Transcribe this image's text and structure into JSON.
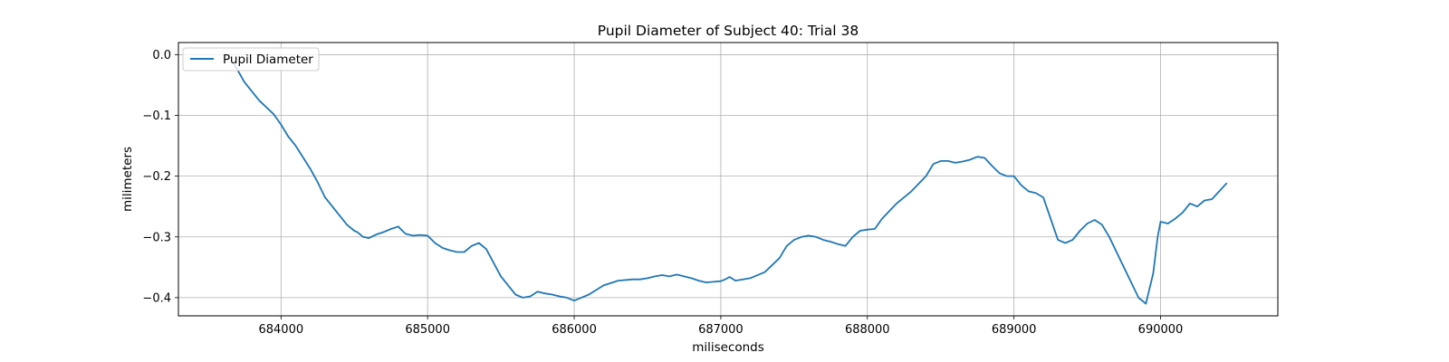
{
  "chart_data": {
    "type": "line",
    "title": "Pupil Diameter of Subject 40: Trial 38",
    "xlabel": "miliseconds",
    "ylabel": "milimeters",
    "xlim": [
      683300,
      690800
    ],
    "ylim": [
      -0.43,
      0.02
    ],
    "xticks": [
      684000,
      685000,
      686000,
      687000,
      688000,
      689000,
      690000
    ],
    "xtick_labels": [
      "684000",
      "685000",
      "686000",
      "687000",
      "688000",
      "689000",
      "690000"
    ],
    "yticks": [
      0.0,
      -0.1,
      -0.2,
      -0.3,
      -0.4
    ],
    "ytick_labels": [
      "0.0",
      "−0.1",
      "−0.2",
      "−0.3",
      "−0.4"
    ],
    "grid": true,
    "legend": {
      "position": "upper-left"
    },
    "series": [
      {
        "name": "Pupil Diameter",
        "color": "#1f77b4",
        "x": [
          683680,
          683750,
          683850,
          683950,
          684000,
          684050,
          684100,
          684200,
          684250,
          684300,
          684400,
          684450,
          684500,
          684520,
          684560,
          684600,
          684650,
          684700,
          684750,
          684800,
          684820,
          684850,
          684900,
          684950,
          685000,
          685050,
          685100,
          685150,
          685200,
          685250,
          685300,
          685350,
          685400,
          685500,
          685600,
          685650,
          685700,
          685750,
          685800,
          685850,
          685900,
          685950,
          686000,
          686100,
          686200,
          686300,
          686400,
          686450,
          686500,
          686550,
          686600,
          686650,
          686700,
          686750,
          686800,
          686850,
          686900,
          686950,
          687000,
          687030,
          687060,
          687100,
          687150,
          687200,
          687300,
          687400,
          687450,
          687500,
          687550,
          687600,
          687650,
          687700,
          687750,
          687800,
          687850,
          687900,
          687950,
          688000,
          688050,
          688100,
          688200,
          688300,
          688400,
          688450,
          688500,
          688550,
          688600,
          688650,
          688700,
          688750,
          688800,
          688850,
          688900,
          688950,
          689000,
          689050,
          689100,
          689150,
          689200,
          689250,
          689300,
          689350,
          689400,
          689450,
          689500,
          689550,
          689600,
          689650,
          689700,
          689750,
          689800,
          689850,
          689900,
          689950,
          689980,
          690000,
          690050,
          690100,
          690150,
          690200,
          690250,
          690300,
          690350,
          690400,
          690450
        ],
        "y": [
          -0.015,
          -0.045,
          -0.075,
          -0.098,
          -0.115,
          -0.135,
          -0.15,
          -0.188,
          -0.21,
          -0.235,
          -0.265,
          -0.28,
          -0.29,
          -0.292,
          -0.3,
          -0.302,
          -0.296,
          -0.292,
          -0.287,
          -0.283,
          -0.288,
          -0.295,
          -0.298,
          -0.297,
          -0.298,
          -0.31,
          -0.318,
          -0.322,
          -0.325,
          -0.325,
          -0.315,
          -0.31,
          -0.32,
          -0.365,
          -0.395,
          -0.4,
          -0.398,
          -0.39,
          -0.393,
          -0.395,
          -0.398,
          -0.4,
          -0.405,
          -0.395,
          -0.38,
          -0.372,
          -0.37,
          -0.37,
          -0.368,
          -0.365,
          -0.363,
          -0.365,
          -0.362,
          -0.365,
          -0.368,
          -0.372,
          -0.375,
          -0.374,
          -0.373,
          -0.37,
          -0.366,
          -0.372,
          -0.37,
          -0.368,
          -0.358,
          -0.335,
          -0.315,
          -0.305,
          -0.3,
          -0.298,
          -0.3,
          -0.305,
          -0.308,
          -0.312,
          -0.315,
          -0.3,
          -0.29,
          -0.288,
          -0.287,
          -0.27,
          -0.245,
          -0.225,
          -0.2,
          -0.18,
          -0.175,
          -0.175,
          -0.178,
          -0.176,
          -0.173,
          -0.168,
          -0.17,
          -0.183,
          -0.195,
          -0.2,
          -0.2,
          -0.215,
          -0.225,
          -0.228,
          -0.235,
          -0.27,
          -0.305,
          -0.31,
          -0.305,
          -0.29,
          -0.278,
          -0.272,
          -0.28,
          -0.3,
          -0.325,
          -0.35,
          -0.375,
          -0.4,
          -0.41,
          -0.36,
          -0.3,
          -0.275,
          -0.278,
          -0.27,
          -0.26,
          -0.245,
          -0.25,
          -0.24,
          -0.238,
          -0.225,
          -0.212
        ]
      }
    ]
  }
}
